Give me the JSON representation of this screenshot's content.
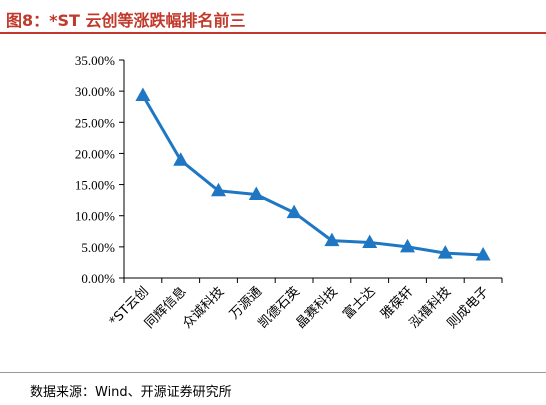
{
  "header": {
    "title": "图8：*ST 云创等涨跌幅排名前三"
  },
  "footer": {
    "source": "数据来源：Wind、开源证券研究所"
  },
  "colors": {
    "accent": "#c0392b",
    "series": "#1f77c4",
    "axis": "#000000"
  },
  "chart_data": {
    "type": "line",
    "title": "",
    "xlabel": "",
    "ylabel": "",
    "ylim": [
      0,
      35
    ],
    "yticks": [
      0,
      5,
      10,
      15,
      20,
      25,
      30,
      35
    ],
    "ytick_labels": [
      "0.00%",
      "5.00%",
      "10.00%",
      "15.00%",
      "20.00%",
      "25.00%",
      "30.00%",
      "35.00%"
    ],
    "categories": [
      "*ST云创",
      "同辉信息",
      "众诚科技",
      "万源通",
      "凯德石英",
      "晶赛科技",
      "富士达",
      "雅葆轩",
      "泓禧科技",
      "则成电子"
    ],
    "series": [
      {
        "values": [
          29.3,
          18.9,
          14.0,
          13.4,
          10.5,
          6.0,
          5.7,
          5.0,
          4.0,
          3.7
        ],
        "marker": "triangle"
      }
    ],
    "grid": false,
    "legend": "none"
  }
}
